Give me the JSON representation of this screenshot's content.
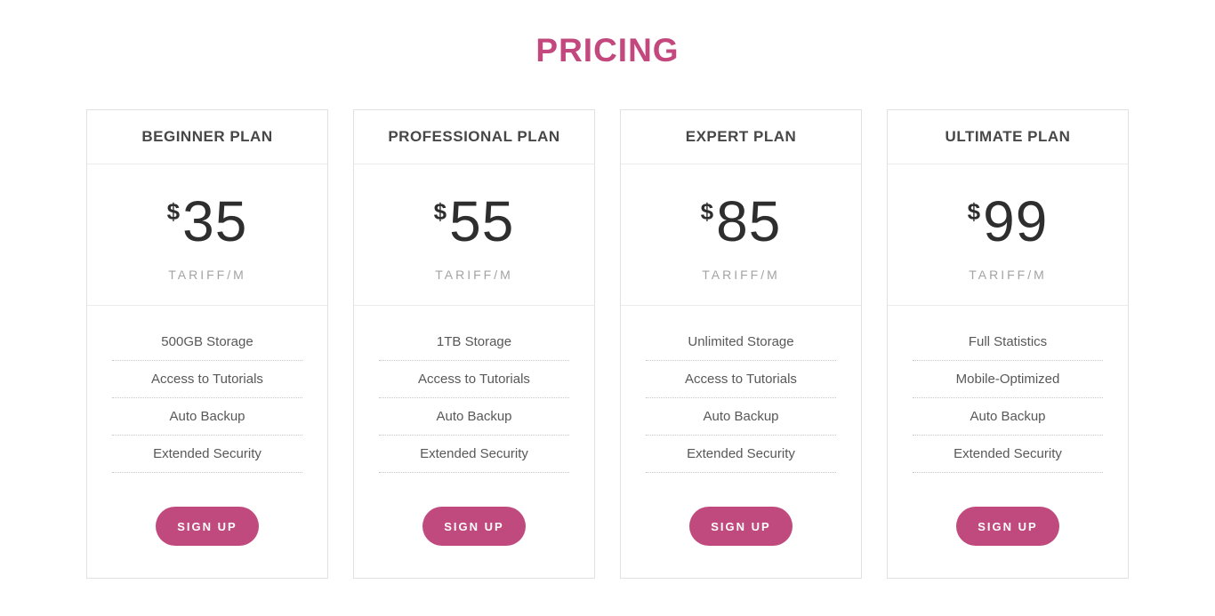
{
  "page": {
    "title": "PRICING",
    "accent_color": "#c2487e",
    "button_color": "#c04a7d"
  },
  "plans": [
    {
      "name": "BEGINNER PLAN",
      "currency": "$",
      "price": "35",
      "period": "TARIFF/M",
      "features": [
        "500GB Storage",
        "Access to Tutorials",
        "Auto Backup",
        "Extended Security"
      ],
      "cta": "SIGN UP"
    },
    {
      "name": "PROFESSIONAL PLAN",
      "currency": "$",
      "price": "55",
      "period": "TARIFF/M",
      "features": [
        "1TB Storage",
        "Access to Tutorials",
        "Auto Backup",
        "Extended Security"
      ],
      "cta": "SIGN UP"
    },
    {
      "name": "EXPERT PLAN",
      "currency": "$",
      "price": "85",
      "period": "TARIFF/M",
      "features": [
        "Unlimited Storage",
        "Access to Tutorials",
        "Auto Backup",
        "Extended Security"
      ],
      "cta": "SIGN UP"
    },
    {
      "name": "ULTIMATE PLAN",
      "currency": "$",
      "price": "99",
      "period": "TARIFF/M",
      "features": [
        "Full Statistics",
        "Mobile-Optimized",
        "Auto Backup",
        "Extended Security"
      ],
      "cta": "SIGN UP"
    }
  ]
}
